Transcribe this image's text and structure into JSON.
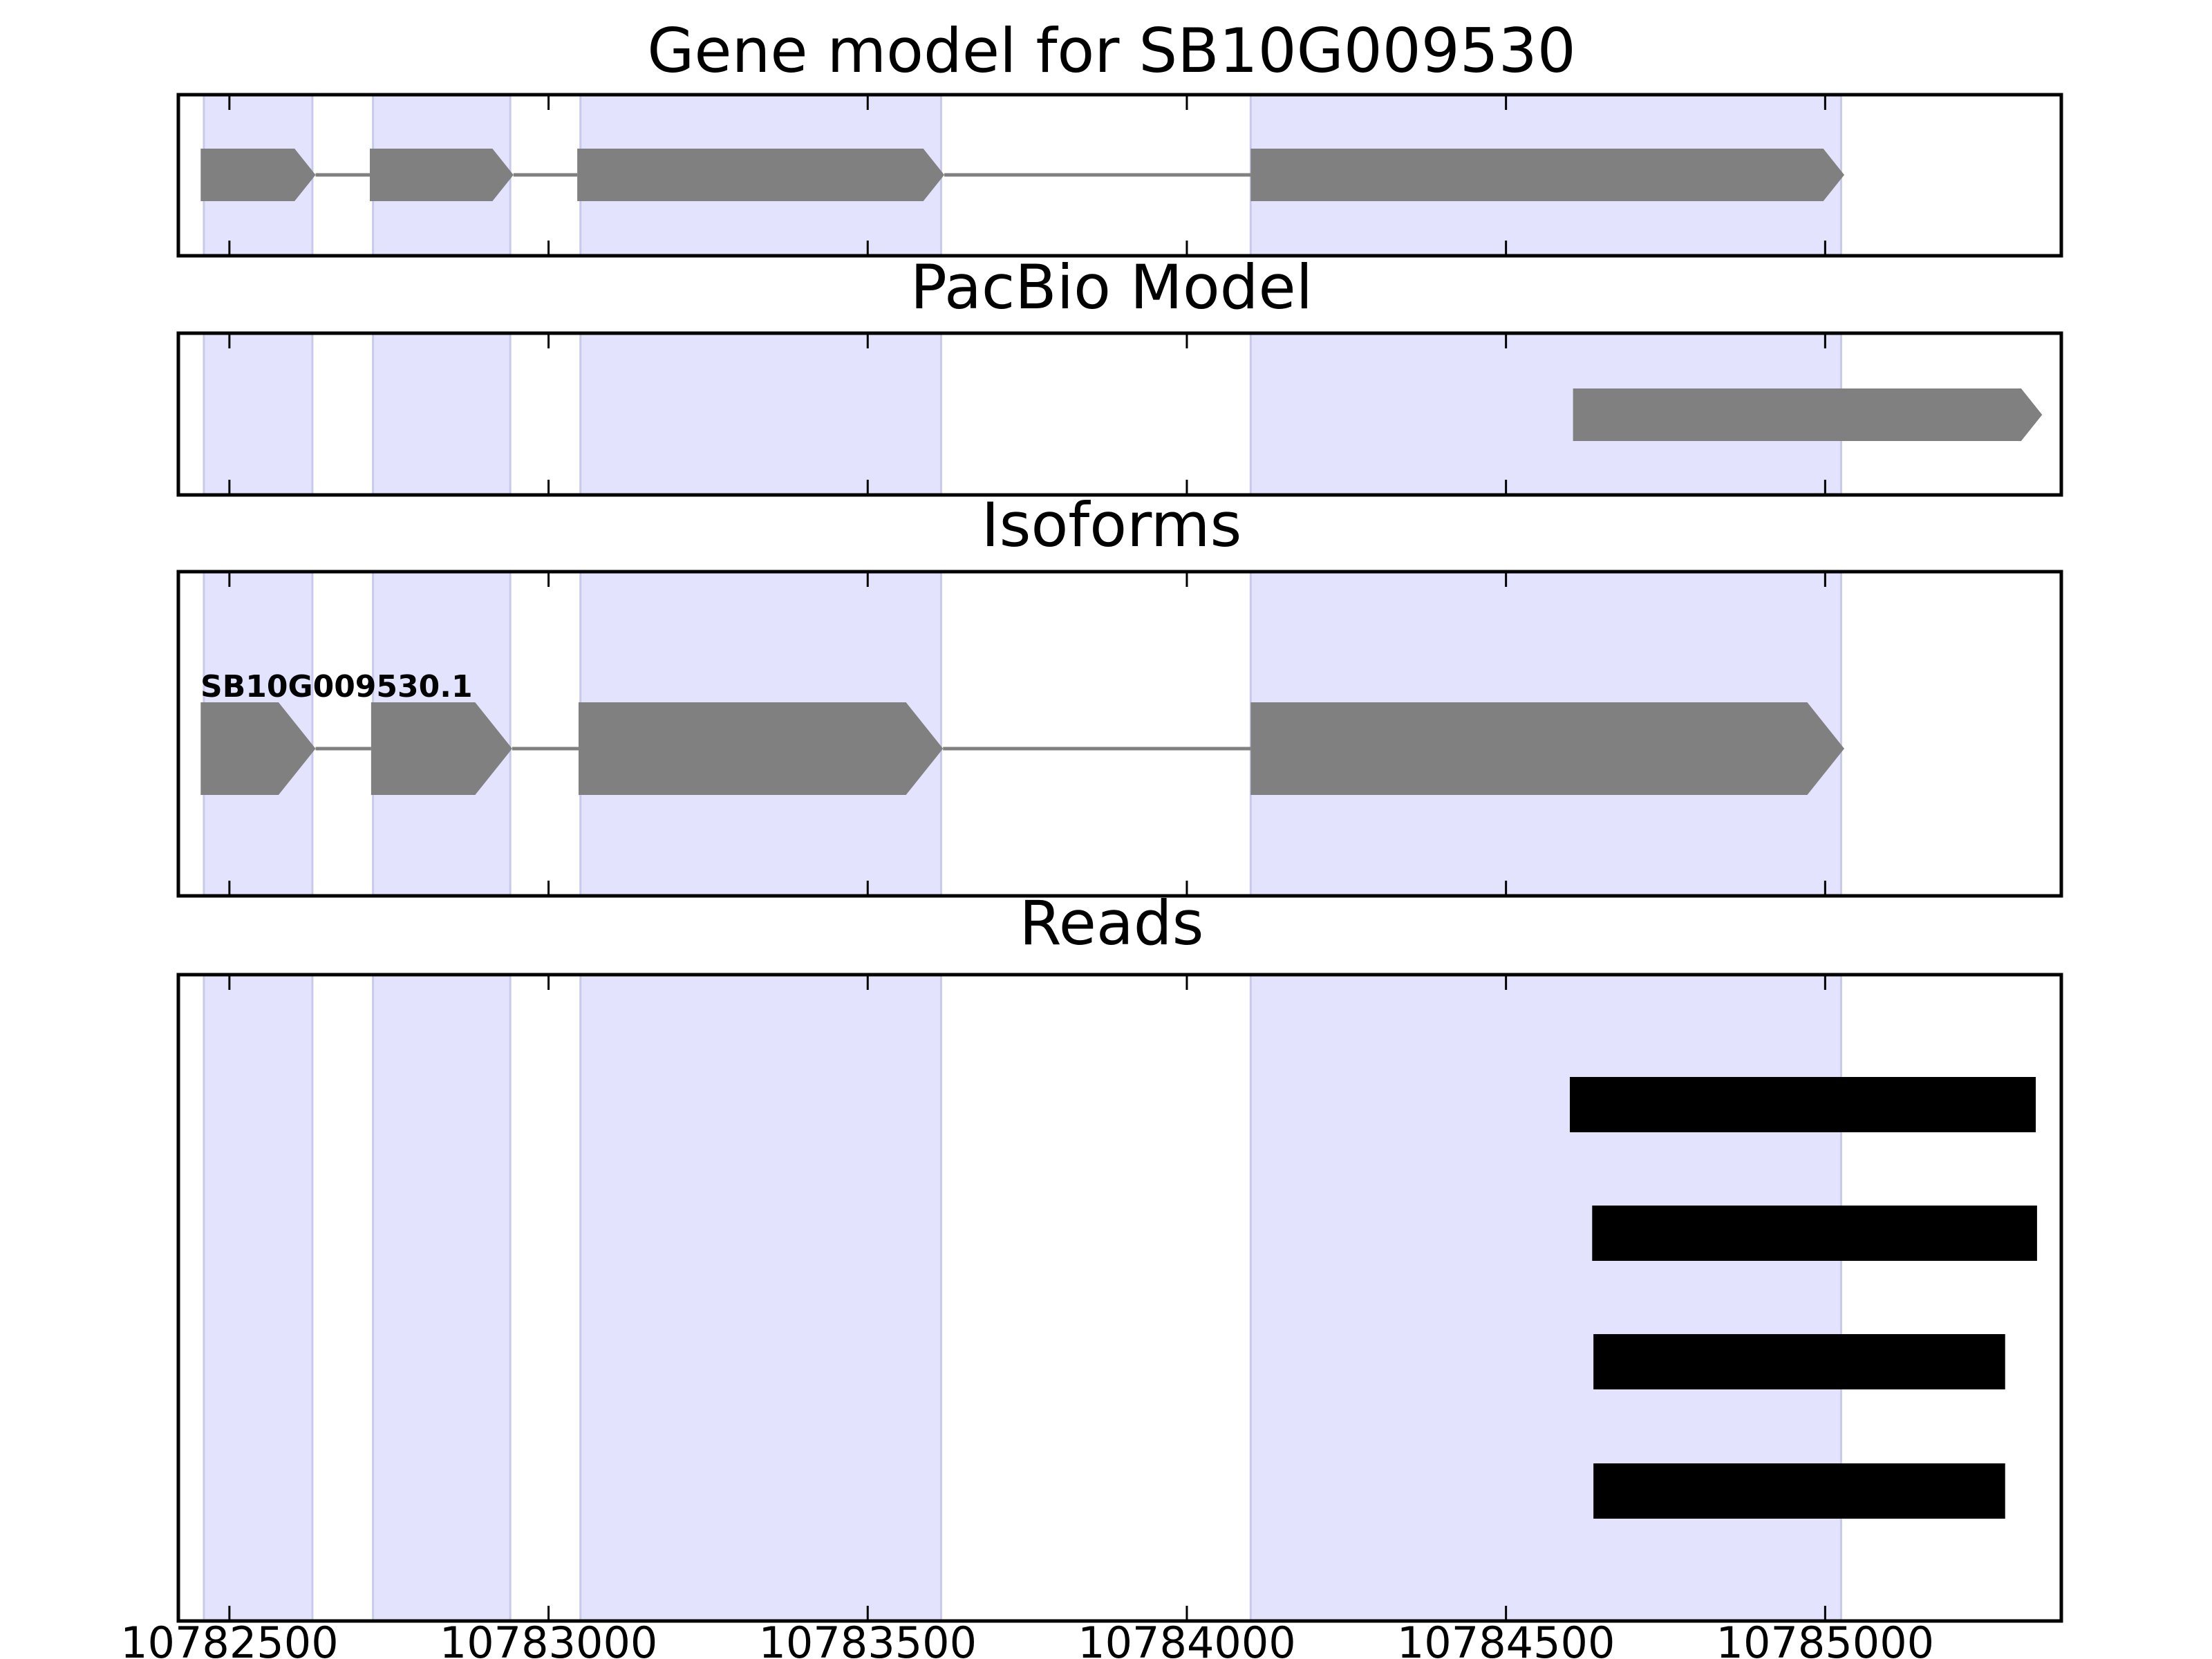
{
  "chart_data": {
    "type": "gene-track",
    "x_range": [
      10782420,
      10785370
    ],
    "x_ticks": [
      10782500,
      10783000,
      10783500,
      10784000,
      10784500,
      10785000
    ],
    "highlight_regions": [
      [
        10782460,
        10782630
      ],
      [
        10782725,
        10782940
      ],
      [
        10783050,
        10783615
      ],
      [
        10784100,
        10785025
      ]
    ],
    "highlight_color": "#e3e3fd",
    "feature_color": "#808080",
    "read_color": "#000000",
    "panels": [
      {
        "title": "Gene model for SB10G009530",
        "features": [
          {
            "start": 10782455,
            "end": 10782635
          },
          {
            "start": 10782720,
            "end": 10782945
          },
          {
            "start": 10783045,
            "end": 10783620
          },
          {
            "start": 10784100,
            "end": 10785030
          }
        ]
      },
      {
        "title": "PacBio Model",
        "features": [
          {
            "start": 10784605,
            "end": 10785340
          }
        ]
      },
      {
        "title": "Isoforms",
        "isoform_label": "SB10G009530.1",
        "features": [
          {
            "start": 10782455,
            "end": 10782635
          },
          {
            "start": 10782722,
            "end": 10782943
          },
          {
            "start": 10783047,
            "end": 10783618
          },
          {
            "start": 10784100,
            "end": 10785030
          }
        ]
      },
      {
        "title": "Reads",
        "reads": [
          {
            "start": 10784600,
            "end": 10785330
          },
          {
            "start": 10784635,
            "end": 10785332
          },
          {
            "start": 10784637,
            "end": 10785282
          },
          {
            "start": 10784637,
            "end": 10785282
          }
        ]
      }
    ]
  }
}
